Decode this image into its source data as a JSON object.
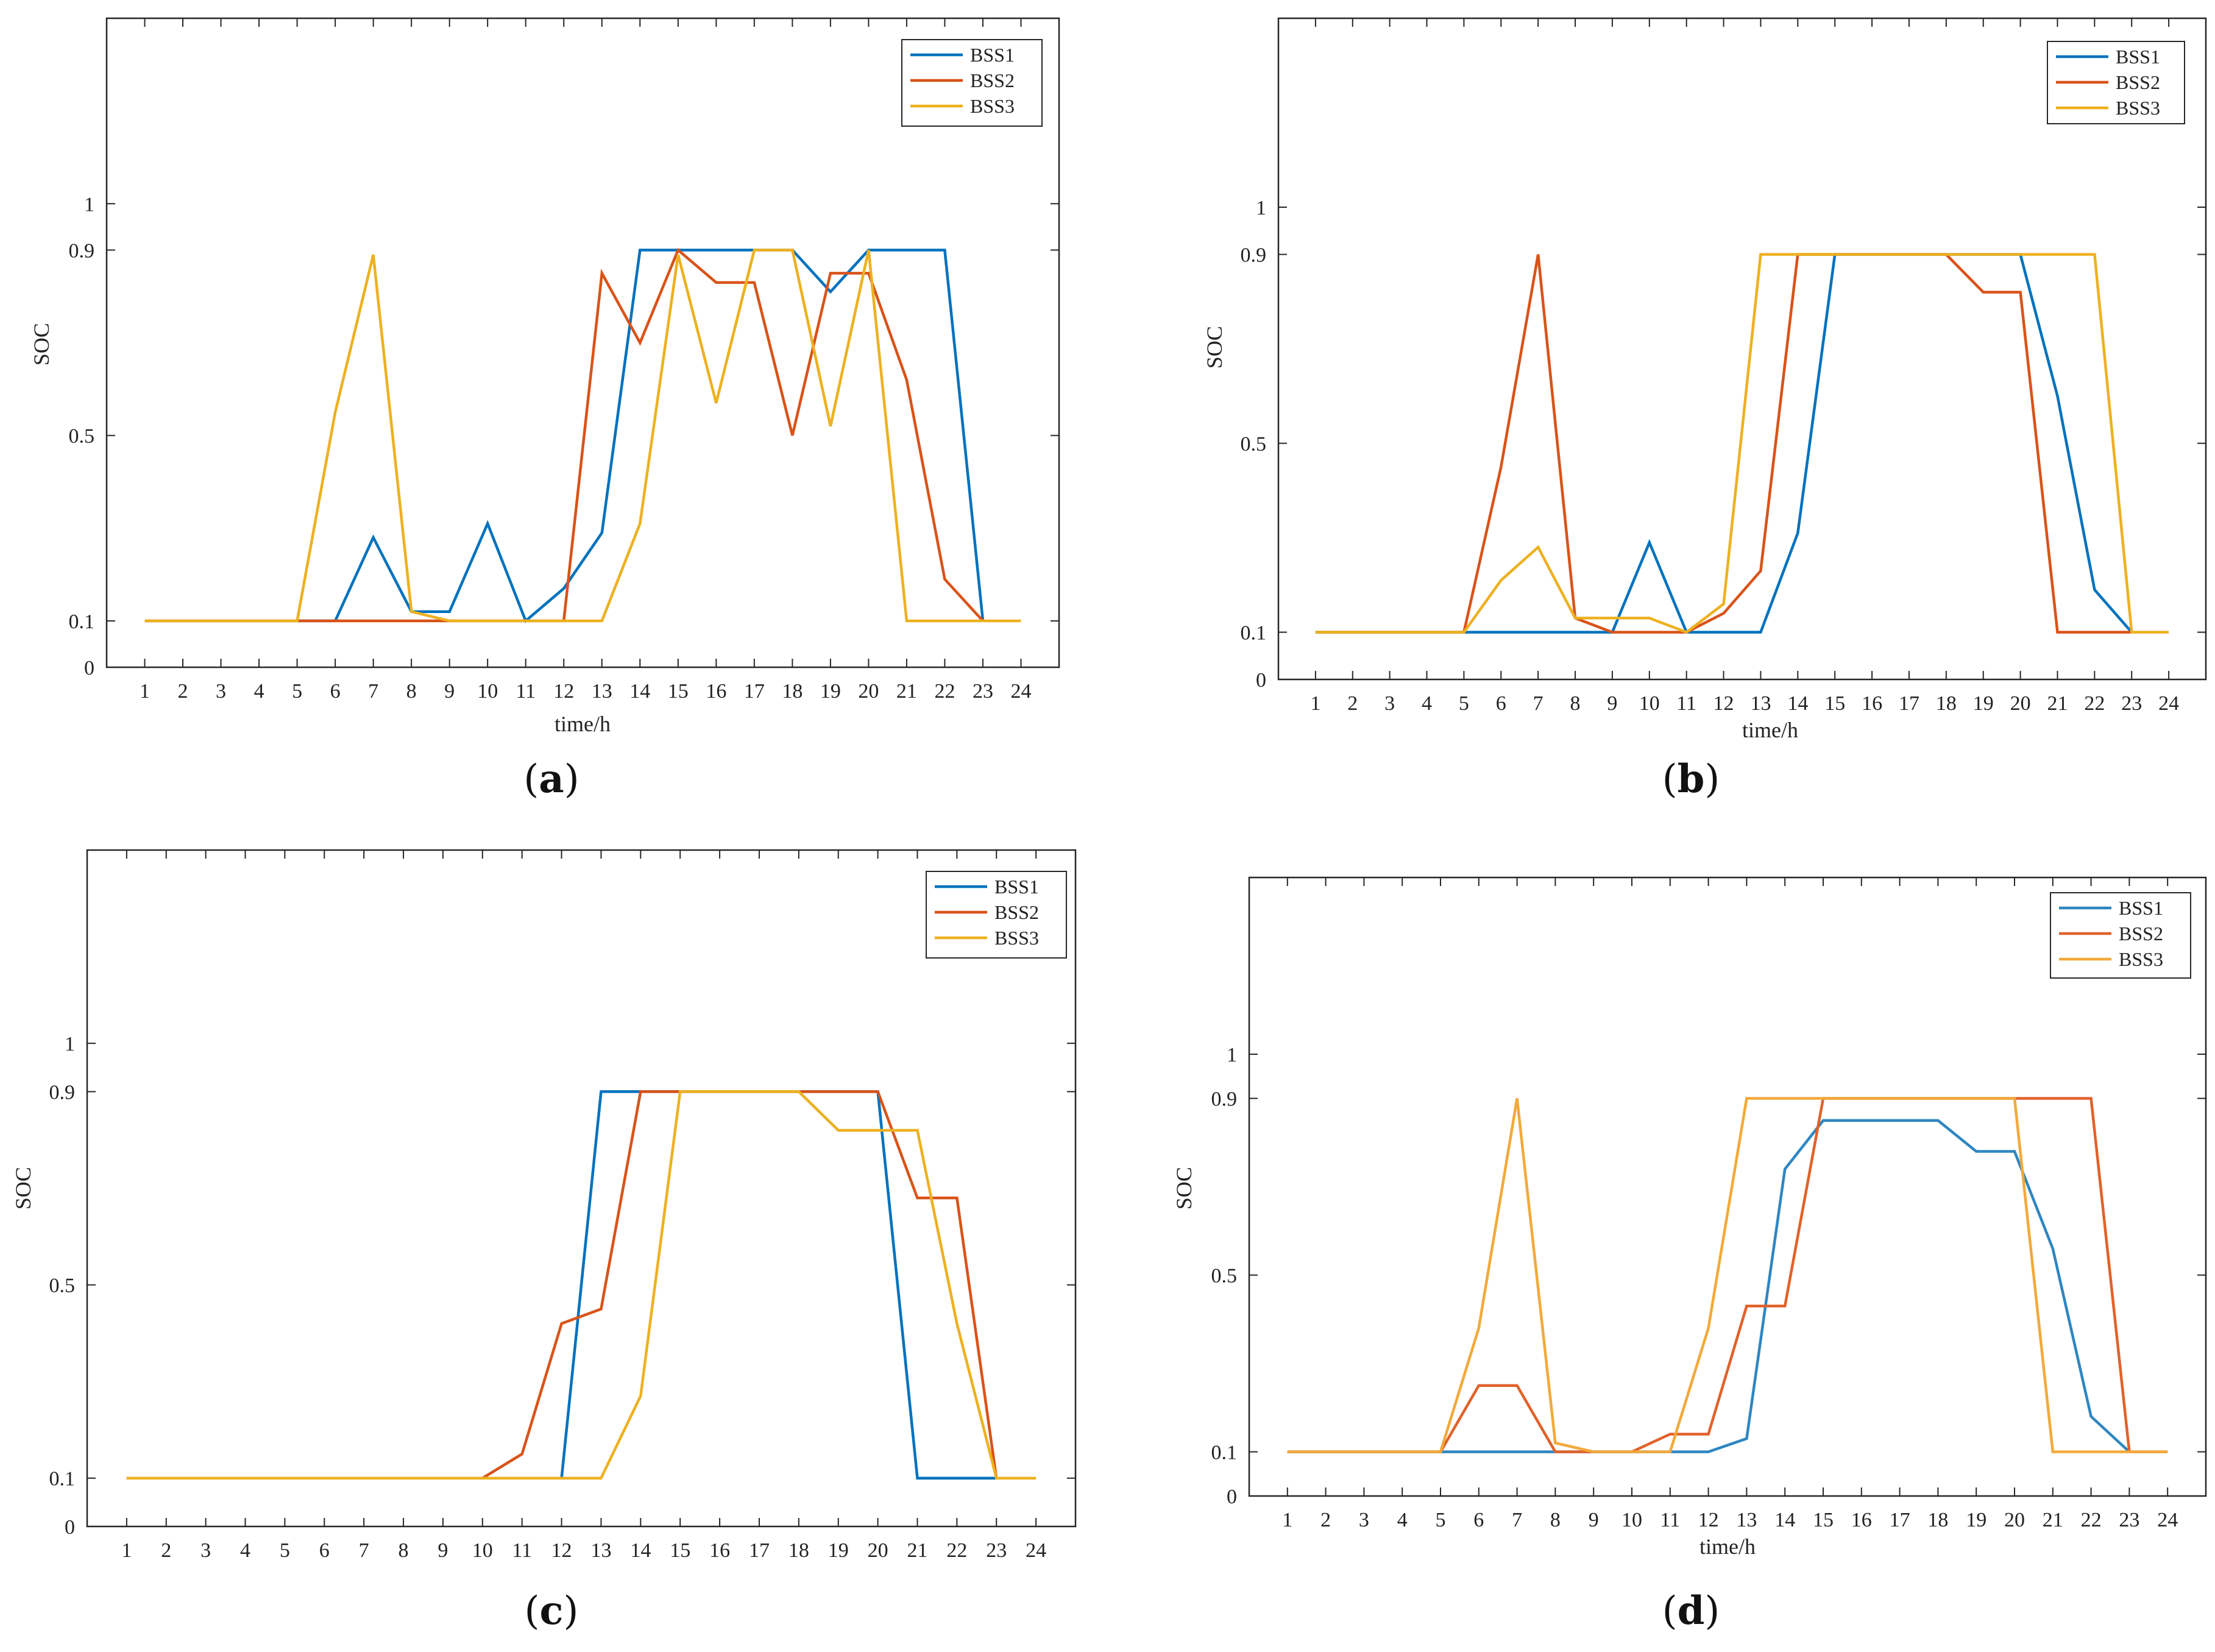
{
  "figure": {
    "panels": [
      {
        "letter": "a"
      },
      {
        "letter": "b"
      },
      {
        "letter": "c"
      },
      {
        "letter": "d"
      }
    ],
    "colors": {
      "BSS1": "#0072BD",
      "BSS2": "#D95319",
      "BSS3": "#EDB120",
      "BSS1_d": "#2E86C1",
      "BSS2_d": "#E1622A",
      "BSS3_d": "#F2A93B",
      "axis": "#262626"
    }
  },
  "chart_data": [
    {
      "type": "line",
      "panel": "a",
      "title": "",
      "xlabel": "time/h",
      "ylabel": "SOC",
      "xlim": [
        0,
        25
      ],
      "ylim": [
        0,
        1.4
      ],
      "xticks": [
        "1",
        "2",
        "3",
        "4",
        "5",
        "6",
        "7",
        "8",
        "9",
        "10",
        "11",
        "12",
        "13",
        "14",
        "15",
        "16",
        "17",
        "18",
        "19",
        "20",
        "21",
        "22",
        "23",
        "24"
      ],
      "yticks": [
        "0",
        "0.1",
        "0.5",
        "0.9",
        "1"
      ],
      "legend": "top-right",
      "x": [
        1,
        2,
        3,
        4,
        5,
        6,
        7,
        8,
        9,
        10,
        11,
        12,
        13,
        14,
        15,
        16,
        17,
        18,
        19,
        20,
        21,
        22,
        23,
        24
      ],
      "series": [
        {
          "name": "BSS1",
          "values": [
            0.1,
            0.1,
            0.1,
            0.1,
            0.1,
            0.1,
            0.28,
            0.12,
            0.12,
            0.31,
            0.1,
            0.17,
            0.29,
            0.9,
            0.9,
            0.9,
            0.9,
            0.9,
            0.81,
            0.9,
            0.9,
            0.9,
            0.1,
            null
          ]
        },
        {
          "name": "BSS2",
          "values": [
            0.1,
            0.1,
            0.1,
            0.1,
            0.1,
            0.1,
            0.1,
            0.1,
            0.1,
            0.1,
            0.1,
            0.1,
            0.85,
            0.7,
            0.9,
            0.83,
            0.83,
            0.5,
            0.85,
            0.85,
            0.62,
            0.19,
            0.1,
            null
          ]
        },
        {
          "name": "BSS3",
          "values": [
            0.1,
            0.1,
            0.1,
            0.1,
            0.1,
            0.55,
            0.89,
            0.12,
            0.1,
            0.1,
            0.1,
            0.1,
            0.1,
            0.31,
            0.89,
            0.57,
            0.9,
            0.9,
            0.52,
            0.9,
            0.1,
            0.1,
            0.1,
            0.1
          ]
        }
      ]
    },
    {
      "type": "line",
      "panel": "b",
      "title": "",
      "xlabel": "time/h",
      "ylabel": "SOC",
      "xlim": [
        0,
        25
      ],
      "ylim": [
        0,
        1.4
      ],
      "xticks": [
        "1",
        "2",
        "3",
        "4",
        "5",
        "6",
        "7",
        "8",
        "9",
        "10",
        "11",
        "12",
        "13",
        "14",
        "15",
        "16",
        "17",
        "18",
        "19",
        "20",
        "21",
        "22",
        "23",
        "24"
      ],
      "yticks": [
        "0",
        "0.1",
        "0.5",
        "0.9",
        "1"
      ],
      "legend": "top-right",
      "x": [
        1,
        2,
        3,
        4,
        5,
        6,
        7,
        8,
        9,
        10,
        11,
        12,
        13,
        14,
        15,
        16,
        17,
        18,
        19,
        20,
        21,
        22,
        23,
        24
      ],
      "series": [
        {
          "name": "BSS1",
          "values": [
            0.1,
            0.1,
            0.1,
            0.1,
            0.1,
            0.1,
            0.1,
            0.1,
            0.1,
            0.29,
            0.1,
            0.1,
            0.1,
            0.31,
            0.9,
            0.9,
            0.9,
            0.9,
            0.9,
            0.9,
            0.6,
            0.19,
            0.1,
            null
          ]
        },
        {
          "name": "BSS2",
          "values": [
            0.1,
            0.1,
            0.1,
            0.1,
            0.1,
            0.45,
            0.9,
            0.13,
            0.1,
            0.1,
            0.1,
            0.14,
            0.23,
            0.9,
            0.9,
            0.9,
            0.9,
            0.9,
            0.82,
            0.82,
            0.1,
            0.1,
            0.1,
            null
          ]
        },
        {
          "name": "BSS3",
          "values": [
            0.1,
            0.1,
            0.1,
            0.1,
            0.1,
            0.21,
            0.28,
            0.13,
            0.13,
            0.13,
            0.1,
            0.16,
            0.9,
            0.9,
            0.9,
            0.9,
            0.9,
            0.9,
            0.9,
            0.9,
            0.9,
            0.9,
            0.1,
            0.1
          ]
        }
      ]
    },
    {
      "type": "line",
      "panel": "c",
      "title": "",
      "xlabel": "",
      "ylabel": "SOC",
      "xlim": [
        0,
        25
      ],
      "ylim": [
        0,
        1.4
      ],
      "xticks": [
        "1",
        "2",
        "3",
        "4",
        "5",
        "6",
        "7",
        "8",
        "9",
        "10",
        "11",
        "12",
        "13",
        "14",
        "15",
        "16",
        "17",
        "18",
        "19",
        "20",
        "21",
        "22",
        "23",
        "24"
      ],
      "yticks": [
        "0",
        "0.1",
        "0.5",
        "0.9",
        "1"
      ],
      "legend": "top-right",
      "x": [
        1,
        2,
        3,
        4,
        5,
        6,
        7,
        8,
        9,
        10,
        11,
        12,
        13,
        14,
        15,
        16,
        17,
        18,
        19,
        20,
        21,
        22,
        23,
        24
      ],
      "series": [
        {
          "name": "BSS1",
          "values": [
            0.1,
            0.1,
            0.1,
            0.1,
            0.1,
            0.1,
            0.1,
            0.1,
            0.1,
            0.1,
            0.1,
            0.1,
            0.9,
            0.9,
            0.9,
            0.9,
            0.9,
            0.9,
            0.9,
            0.9,
            0.1,
            0.1,
            0.1,
            null
          ]
        },
        {
          "name": "BSS2",
          "values": [
            0.1,
            0.1,
            0.1,
            0.1,
            0.1,
            0.1,
            0.1,
            0.1,
            0.1,
            0.1,
            0.15,
            0.42,
            0.45,
            0.9,
            0.9,
            0.9,
            0.9,
            0.9,
            0.9,
            0.9,
            0.68,
            0.68,
            0.1,
            null
          ]
        },
        {
          "name": "BSS3",
          "values": [
            0.1,
            0.1,
            0.1,
            0.1,
            0.1,
            0.1,
            0.1,
            0.1,
            0.1,
            0.1,
            0.1,
            0.1,
            0.1,
            0.27,
            0.9,
            0.9,
            0.9,
            0.9,
            0.82,
            0.82,
            0.82,
            0.42,
            0.1,
            0.1
          ]
        }
      ]
    },
    {
      "type": "line",
      "panel": "d",
      "title": "",
      "xlabel": "time/h",
      "ylabel": "SOC",
      "xlim": [
        0,
        25
      ],
      "ylim": [
        0,
        1.4
      ],
      "xticks": [
        "1",
        "2",
        "3",
        "4",
        "5",
        "6",
        "7",
        "8",
        "9",
        "10",
        "11",
        "12",
        "13",
        "14",
        "15",
        "16",
        "17",
        "18",
        "19",
        "20",
        "21",
        "22",
        "23",
        "24"
      ],
      "yticks": [
        "0",
        "0.1",
        "0.5",
        "0.9",
        "1"
      ],
      "legend": "top-right",
      "x": [
        1,
        2,
        3,
        4,
        5,
        6,
        7,
        8,
        9,
        10,
        11,
        12,
        13,
        14,
        15,
        16,
        17,
        18,
        19,
        20,
        21,
        22,
        23,
        24
      ],
      "series": [
        {
          "name": "BSS1",
          "values": [
            0.1,
            0.1,
            0.1,
            0.1,
            0.1,
            0.1,
            0.1,
            0.1,
            0.1,
            0.1,
            0.1,
            0.1,
            0.13,
            0.74,
            0.85,
            0.85,
            0.85,
            0.85,
            0.78,
            0.78,
            0.56,
            0.18,
            0.1,
            null
          ]
        },
        {
          "name": "BSS2",
          "values": [
            0.1,
            0.1,
            0.1,
            0.1,
            0.1,
            0.25,
            0.25,
            0.1,
            0.1,
            0.1,
            0.14,
            0.14,
            0.43,
            0.43,
            0.9,
            0.9,
            0.9,
            0.9,
            0.9,
            0.9,
            0.9,
            0.9,
            0.1,
            0.1
          ]
        },
        {
          "name": "BSS3",
          "values": [
            0.1,
            0.1,
            0.1,
            0.1,
            0.1,
            0.38,
            0.9,
            0.12,
            0.1,
            0.1,
            0.1,
            0.38,
            0.9,
            0.9,
            0.9,
            0.9,
            0.9,
            0.9,
            0.9,
            0.9,
            0.1,
            0.1,
            0.1,
            0.1
          ]
        }
      ]
    }
  ]
}
